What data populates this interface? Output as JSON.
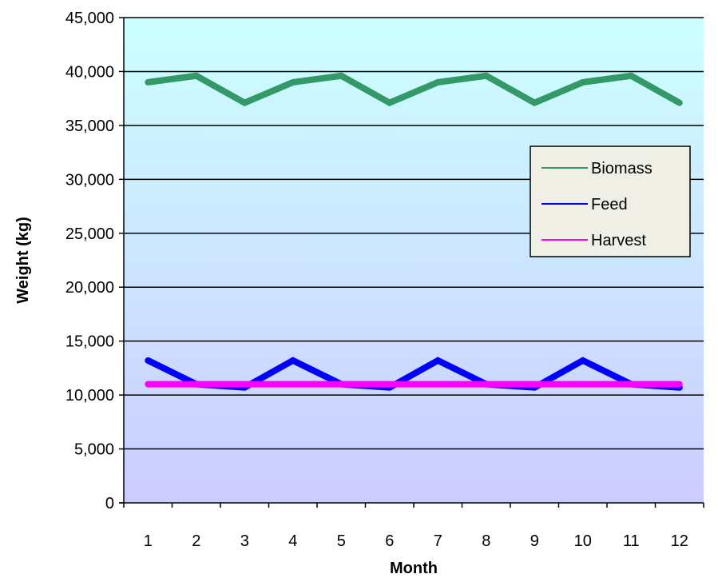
{
  "chart_data": {
    "type": "line",
    "title": "",
    "xlabel": "Month",
    "ylabel": "Weight (kg)",
    "categories": [
      "1",
      "2",
      "3",
      "4",
      "5",
      "6",
      "7",
      "8",
      "9",
      "10",
      "11",
      "12"
    ],
    "ylim": [
      0,
      45000
    ],
    "y_ticks": [
      0,
      5000,
      10000,
      15000,
      20000,
      25000,
      30000,
      35000,
      40000,
      45000
    ],
    "y_tick_labels": [
      "0",
      "5,000",
      "10,000",
      "15,000",
      "20,000",
      "25,000",
      "30,000",
      "35,000",
      "40,000",
      "45,000"
    ],
    "grid": true,
    "legend_position": "right",
    "background_gradient": [
      "#ccffff",
      "#ccccff"
    ],
    "series": [
      {
        "name": "Biomass",
        "color": "#339966",
        "values": [
          39000,
          39600,
          37100,
          39000,
          39600,
          37100,
          39000,
          39600,
          37100,
          39000,
          39600,
          37100
        ]
      },
      {
        "name": "Feed",
        "color": "#0000ff",
        "values": [
          13200,
          11000,
          10700,
          13200,
          11000,
          10700,
          13200,
          11000,
          10700,
          13200,
          11000,
          10700
        ]
      },
      {
        "name": "Harvest",
        "color": "#ff00ff",
        "values": [
          11000,
          11000,
          11000,
          11000,
          11000,
          11000,
          11000,
          11000,
          11000,
          11000,
          11000,
          11000
        ]
      }
    ]
  }
}
